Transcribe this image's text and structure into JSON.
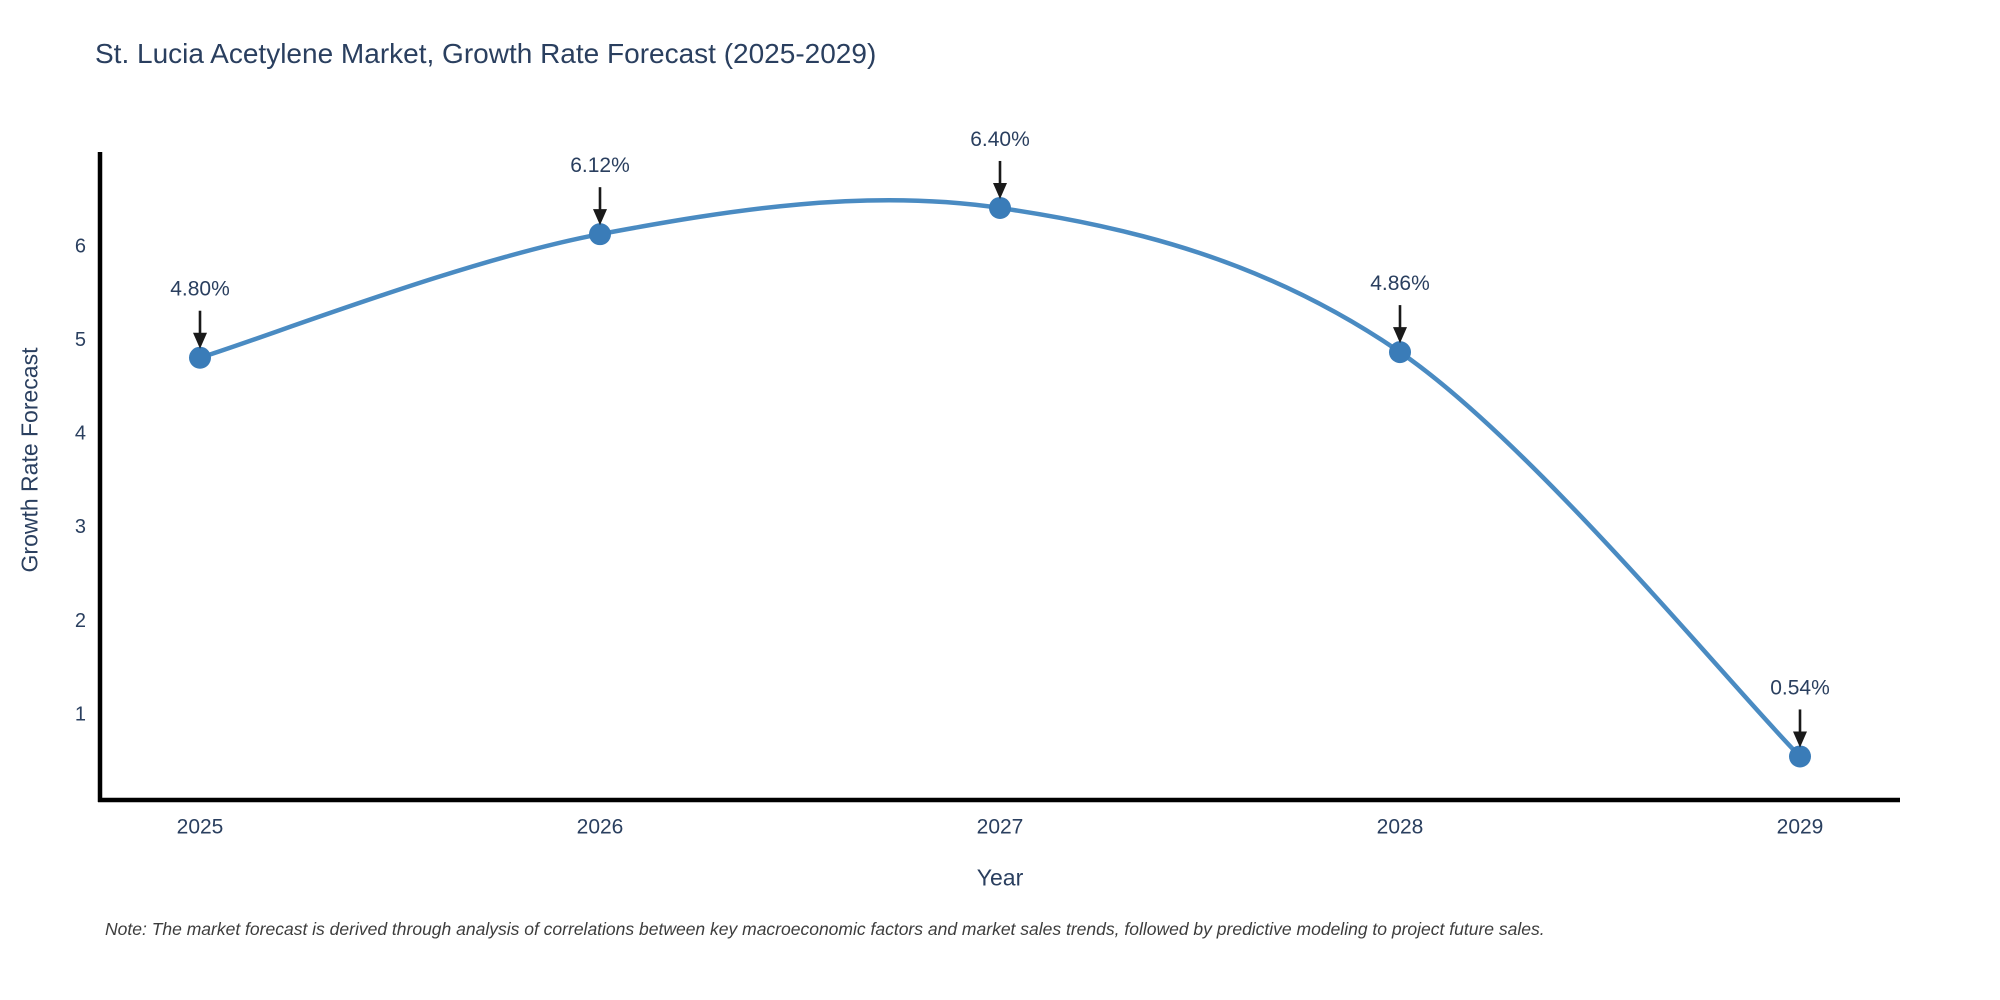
{
  "title": "St. Lucia Acetylene Market, Growth Rate Forecast (2025-2029)",
  "note": "Note: The market forecast is derived through analysis of correlations between key macroeconomic factors and market sales trends, followed by predictive modeling to project future sales.",
  "chart_data": {
    "type": "line",
    "title": "St. Lucia Acetylene Market, Growth Rate Forecast (2025-2029)",
    "xlabel": "Year",
    "ylabel": "Growth Rate Forecast",
    "categories": [
      "2025",
      "2026",
      "2027",
      "2028",
      "2029"
    ],
    "series": [
      {
        "name": "Growth Rate Forecast",
        "values": [
          4.8,
          6.12,
          6.4,
          4.86,
          0.54
        ],
        "point_labels": [
          "4.80%",
          "6.12%",
          "6.40%",
          "4.86%",
          "0.54%"
        ]
      }
    ],
    "y_ticks": [
      1,
      2,
      3,
      4,
      5,
      6
    ],
    "ylim": [
      0.07,
      7.0
    ],
    "line_shape": "spline",
    "grid": false,
    "legend_position": "none",
    "colors": {
      "line": "#4a8bc2",
      "marker": "#3a7cb8",
      "axis": "#000000",
      "text": "#2a3f5f",
      "annotation_arrow": "#1a1a1a",
      "note_text": "#3d3d3d",
      "background": "#ffffff"
    }
  }
}
